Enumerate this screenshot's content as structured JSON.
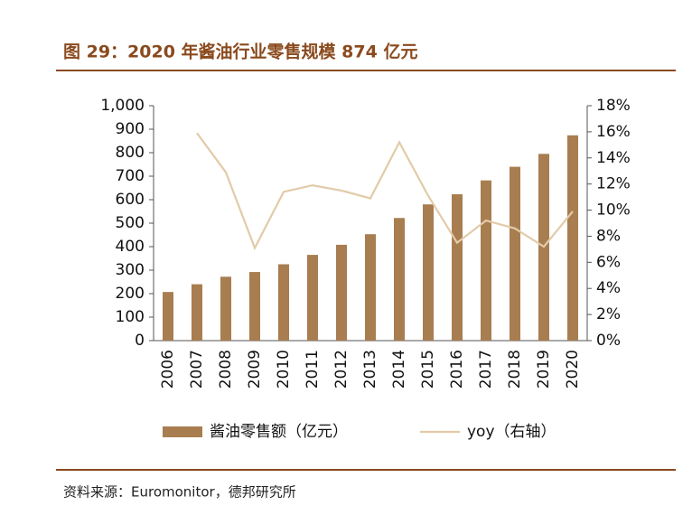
{
  "chart_data": {
    "type": "bar-line",
    "title": "图 29：2020 年酱油行业零售规模 874 亿元",
    "source": "资料来源：Euromonitor，德邦研究所",
    "categories": [
      "2006",
      "2007",
      "2008",
      "2009",
      "2010",
      "2011",
      "2012",
      "2013",
      "2014",
      "2015",
      "2016",
      "2017",
      "2018",
      "2019",
      "2020"
    ],
    "series": [
      {
        "name": "酱油零售额（亿元）",
        "type": "bar",
        "color": "#a87d50",
        "values": [
          207,
          240,
          272,
          292,
          325,
          365,
          408,
          453,
          522,
          580,
          623,
          682,
          740,
          795,
          874
        ]
      },
      {
        "name": "yoy（右轴）",
        "type": "line",
        "axis": "y2",
        "color": "#e2cba8",
        "values": [
          null,
          15.9,
          12.9,
          7.1,
          11.4,
          11.9,
          11.5,
          10.9,
          15.2,
          11.1,
          7.5,
          9.2,
          8.6,
          7.2,
          9.9
        ]
      }
    ],
    "ylim": [
      0,
      1000
    ],
    "yticks": [
      0,
      100,
      200,
      300,
      400,
      500,
      600,
      700,
      800,
      900,
      {
        "value": 1000,
        "label": "1,000"
      }
    ],
    "y2lim": [
      0,
      18
    ],
    "y2ticks": [
      {
        "value": 0,
        "label": "0%"
      },
      {
        "value": 2,
        "label": "2%"
      },
      {
        "value": 4,
        "label": "4%"
      },
      {
        "value": 6,
        "label": "6%"
      },
      {
        "value": 8,
        "label": "8%"
      },
      {
        "value": 10,
        "label": "10%"
      },
      {
        "value": 12,
        "label": "12%"
      },
      {
        "value": 14,
        "label": "14%"
      },
      {
        "value": 16,
        "label": "16%"
      },
      {
        "value": 18,
        "label": "18%"
      }
    ],
    "legend": "bottom"
  }
}
